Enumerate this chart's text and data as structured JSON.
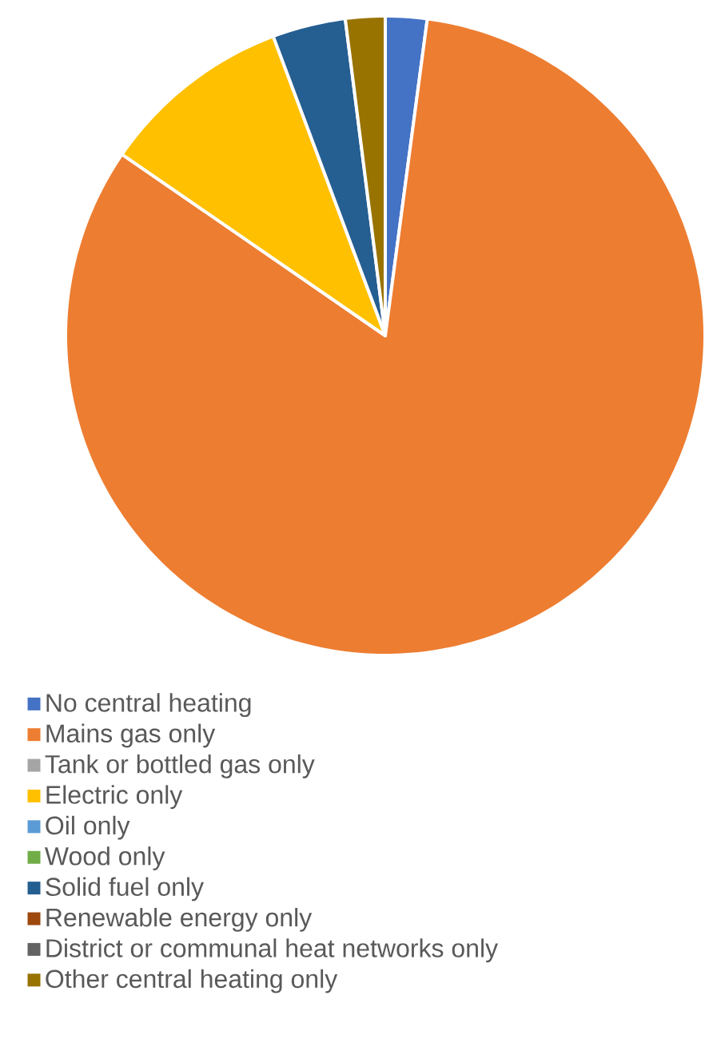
{
  "chart_data": {
    "type": "pie",
    "categories": [
      "No central heating",
      "Mains gas only",
      "Tank or bottled gas only",
      "Electric only",
      "Oil only",
      "Wood only",
      "Solid fuel only",
      "Renewable energy only",
      "District or communal heat networks only",
      "Other central heating only"
    ],
    "values": [
      2.1,
      82.5,
      0,
      9.7,
      0,
      0,
      3.7,
      0,
      0,
      2.0
    ],
    "colors": [
      "#4472c4",
      "#ed7d31",
      "#a5a5a5",
      "#ffc000",
      "#5b9bd5",
      "#70ad47",
      "#255e91",
      "#9e480e",
      "#636363",
      "#997300"
    ],
    "legend": "bottom"
  }
}
